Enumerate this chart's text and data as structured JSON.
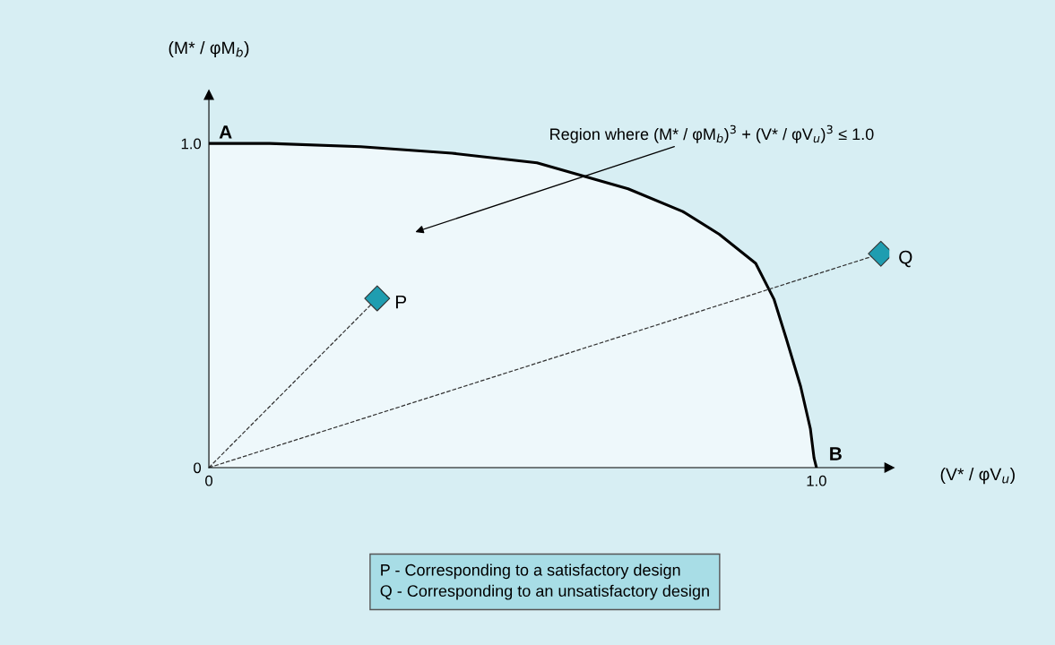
{
  "chart_data": {
    "type": "area",
    "xlabel": "(V* / φV$_{u}$)",
    "ylabel": "(M* / φM$_{b}$)",
    "x": [
      0,
      0.1,
      0.25,
      0.4,
      0.54,
      0.69,
      0.78,
      0.84,
      0.9,
      0.93,
      0.95,
      0.974,
      0.99,
      0.996,
      1.0
    ],
    "series": [
      {
        "color": "#eef8fb",
        "values": [
          1.0,
          1.0,
          0.99,
          0.97,
          0.94,
          0.86,
          0.79,
          0.72,
          0.63,
          0.52,
          0.4,
          0.25,
          0.12,
          0.03,
          0
        ]
      },
      {
        "type": "line",
        "line_style": "dashed",
        "color": "#333333",
        "x": [
          0,
          0.277
        ],
        "values": [
          0,
          0.522
        ]
      },
      {
        "type": "line",
        "line_style": "dashed",
        "color": "#333333",
        "x": [
          0,
          1.106
        ],
        "values": [
          0,
          0.66
        ]
      },
      {
        "type": "scatter",
        "name": "P",
        "marker": "diamond",
        "color": "#1f9db0",
        "x": [
          0.277
        ],
        "values": [
          0.522
        ]
      },
      {
        "type": "scatter",
        "name": "Q",
        "marker": "diamond",
        "color": "#1f9db0",
        "x": [
          1.106
        ],
        "values": [
          0.66
        ]
      }
    ],
    "xlim": [
      0,
      1.12
    ],
    "ylim": [
      0,
      1.15
    ],
    "xticks": [
      0,
      {
        "value": 1,
        "label": "1.0"
      }
    ],
    "yticks": [
      0,
      {
        "value": 1,
        "label": "1.0"
      }
    ],
    "grid": false,
    "annotations": [
      {
        "text": "A",
        "x": 0,
        "y": 1.0
      },
      {
        "text": "B",
        "x": 1.0,
        "y": 0
      },
      "Region where (M* / φM$_{b}$)$^{3}$ + (V* / φV$_{u}$)$^{3}$ ≤ 1.0",
      "P - Corresponding to a satisfactory design\nQ - Corresponding to an unsatisfactory design"
    ]
  }
}
